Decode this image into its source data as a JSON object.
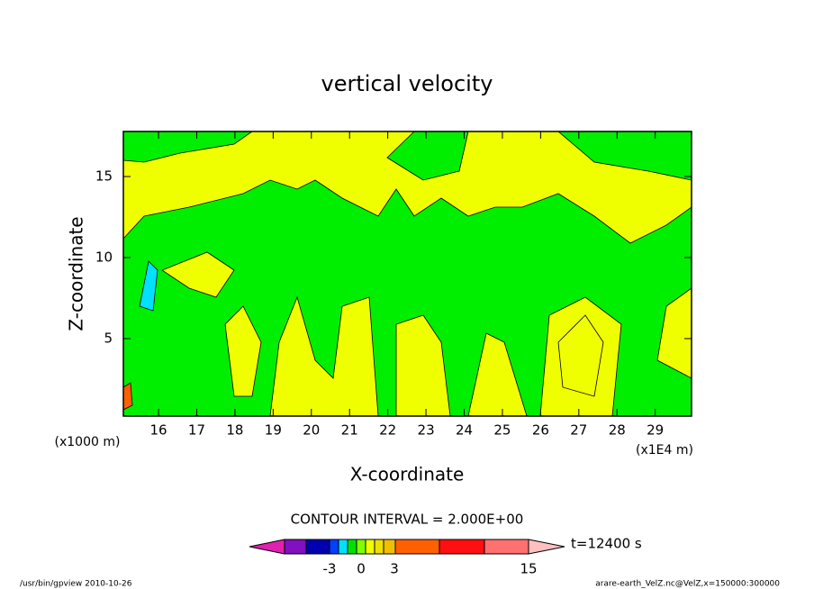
{
  "chart_data": {
    "type": "contour",
    "title": "vertical velocity",
    "x_label": "X-coordinate",
    "y_label": "Z-coordinate",
    "x_unit": "(x1E4 m)",
    "y_unit": "(x1000 m)",
    "xlim": [
      15.08,
      29.95
    ],
    "xticks": [
      16,
      17,
      18,
      19,
      20,
      21,
      22,
      23,
      24,
      25,
      26,
      27,
      28,
      29
    ],
    "ylim": [
      0.22,
      17.78
    ],
    "yticks": [
      5,
      10,
      15
    ],
    "contour_interval": "CONTOUR INTERVAL = 2.000E+00",
    "time": "t=12400 s",
    "colorbar": {
      "colors": [
        "#e020b0",
        "#8010c0",
        "#0000b0",
        "#0040ff",
        "#00e0ff",
        "#00e000",
        "#80ff00",
        "#f0ff00",
        "#f0e000",
        "#f0c000",
        "#ff6000",
        "#ff1010",
        "#ff7070",
        "#ffc0c0"
      ],
      "labels": [
        "-3",
        "0",
        "3",
        "15"
      ]
    },
    "footer_left": "/usr/bin/gpview  2010-10-26",
    "footer_right": "arare-earth_VelZ.nc@VelZ,x=150000:300000"
  }
}
